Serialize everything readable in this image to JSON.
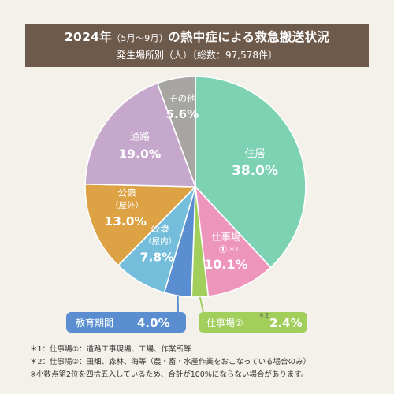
{
  "title": {
    "year": "2024年",
    "period": "（5月〜9月）",
    "rest": "の熱中症による救急搬送状況",
    "subtitle": "発生場所別（人）〔総数：97,578件〕"
  },
  "footnotes": [
    "＊1：仕事場①：道路工事現場、工場、作業所等",
    "＊2：仕事場②：田畑、森林、海等（農・畜・水産作業をおこなっている場合のみ）",
    "※小数点第2位を四捨五入しているため、合計が100%にならない場合があります。"
  ],
  "colors": {
    "title_bg": "#6e5a4b",
    "background": "#f4f1ea"
  },
  "chart_data": {
    "type": "pie",
    "start": "12 o'clock, clockwise",
    "slices": [
      {
        "label": "住居",
        "value": 38.0,
        "display": "38.0%",
        "color": "#7dd2b4",
        "text_color": "#ffffff"
      },
      {
        "label": "仕事場①",
        "note": "＊1",
        "value": 10.1,
        "display": "10.1%",
        "color": "#ee95bc",
        "text_color": "#ffffff"
      },
      {
        "label": "仕事場②",
        "note": "＊2",
        "value": 2.4,
        "display": "2.4%",
        "color": "#a2cf5c",
        "text_color": "#ffffff"
      },
      {
        "label": "教育期間",
        "value": 4.0,
        "display": "4.0%",
        "color": "#5a8ed0",
        "text_color": "#ffffff"
      },
      {
        "label": "公衆（屋内）",
        "value": 7.8,
        "display": "7.8%",
        "color": "#74bedc",
        "text_color": "#ffffff"
      },
      {
        "label": "公衆（屋外）",
        "value": 13.0,
        "display": "13.0%",
        "color": "#dca243",
        "text_color": "#ffffff"
      },
      {
        "label": "通路",
        "value": 19.0,
        "display": "19.0%",
        "color": "#c6a8cd",
        "text_color": "#ffffff"
      },
      {
        "label": "その他",
        "value": 5.6,
        "display": "5.6%",
        "color": "#a6a5a2",
        "text_color": "#ffffff"
      }
    ]
  }
}
